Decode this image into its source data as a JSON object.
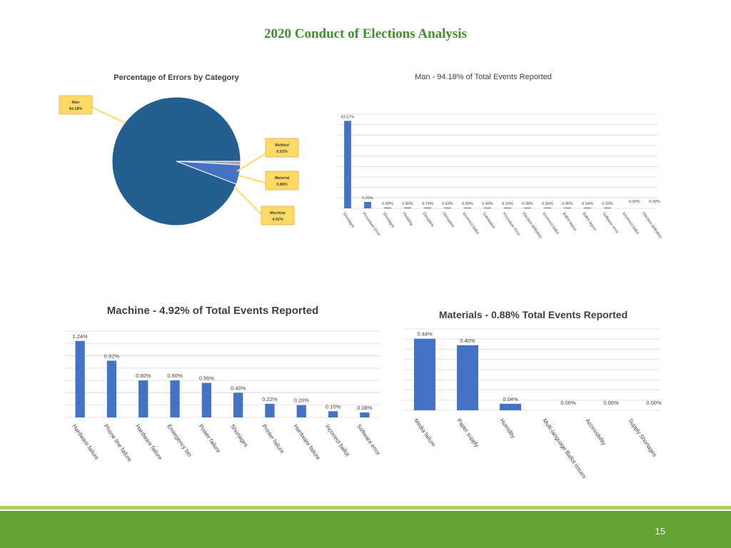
{
  "slide": {
    "title": "2020 Conduct of Elections Analysis",
    "page_number": "15"
  },
  "colors": {
    "bar": "#4472c4",
    "pie_main": "#255e91",
    "title_green": "#3f8f2e",
    "footer": "#62a535",
    "callout": "#ffd966"
  },
  "chart_data": [
    {
      "type": "pie",
      "title": "Percentage of Errors by Category",
      "categories": [
        "Man",
        "Method",
        "Material",
        "Machine"
      ],
      "values": [
        94.18,
        0.02,
        0.88,
        4.92
      ],
      "data_labels": [
        "94.18%",
        "0.02%",
        "0.88%",
        "4.92%"
      ]
    },
    {
      "type": "bar",
      "title": "Man - 94.18% of Total Events Reported",
      "categories": [
        "Shortages",
        "Procedure Error",
        "Shortages",
        "Flooding",
        "Discipline",
        "Disruptive",
        "Incorrect ballot",
        "Solicitation",
        "Procedure Error",
        "Election definition",
        "Incorrect ballot",
        "Ballot layout",
        "Ballot layout",
        "Software error",
        "Incorrect ballot",
        "Election definition"
      ],
      "values": [
        83.57,
        6.2,
        0.8,
        0.8,
        0.74,
        0.62,
        0.58,
        0.46,
        0.16,
        0.08,
        0.06,
        0.06,
        0.04,
        0.02,
        0.0,
        0.0
      ],
      "data_labels": [
        "83.57%",
        "6.20%",
        "0.80%",
        "0.80%",
        "0.74%",
        "0.62%",
        "0.58%",
        "0.46%",
        "0.16%",
        "0.08%",
        "0.06%",
        "0.06%",
        "0.04%",
        "0.02%",
        "0.00%",
        "0.00%"
      ],
      "ylim": [
        0,
        90
      ]
    },
    {
      "type": "bar",
      "title": "Machine - 4.92% of Total Events Reported",
      "categories": [
        "Hardware failure",
        "Phone line failure",
        "Hardware failure",
        "Emergency bin",
        "Power failure",
        "Shortages",
        "Printer failure",
        "Hardware failure",
        "Incorrect ballot",
        "Software error"
      ],
      "values": [
        1.24,
        0.92,
        0.6,
        0.6,
        0.56,
        0.4,
        0.22,
        0.2,
        0.1,
        0.08
      ],
      "data_labels": [
        "1.24%",
        "0.92%",
        "0.60%",
        "0.60%",
        "0.56%",
        "0.40%",
        "0.22%",
        "0.20%",
        "0.10%",
        "0.08%"
      ],
      "ylim": [
        0,
        1.4
      ]
    },
    {
      "type": "bar",
      "title": "Materials - 0.88% Total Events Reported",
      "categories": [
        "Media failure",
        "Paper supply",
        "Humidity",
        "Multi-language Ballot Issues",
        "Accessibility",
        "Supply Shortages"
      ],
      "values": [
        0.44,
        0.4,
        0.04,
        0.0,
        0.0,
        0.0
      ],
      "data_labels": [
        "0.44%",
        "0.40%",
        "0.04%",
        "0.00%",
        "0.00%",
        "0.00%"
      ],
      "ylim": [
        0,
        0.5
      ]
    }
  ]
}
